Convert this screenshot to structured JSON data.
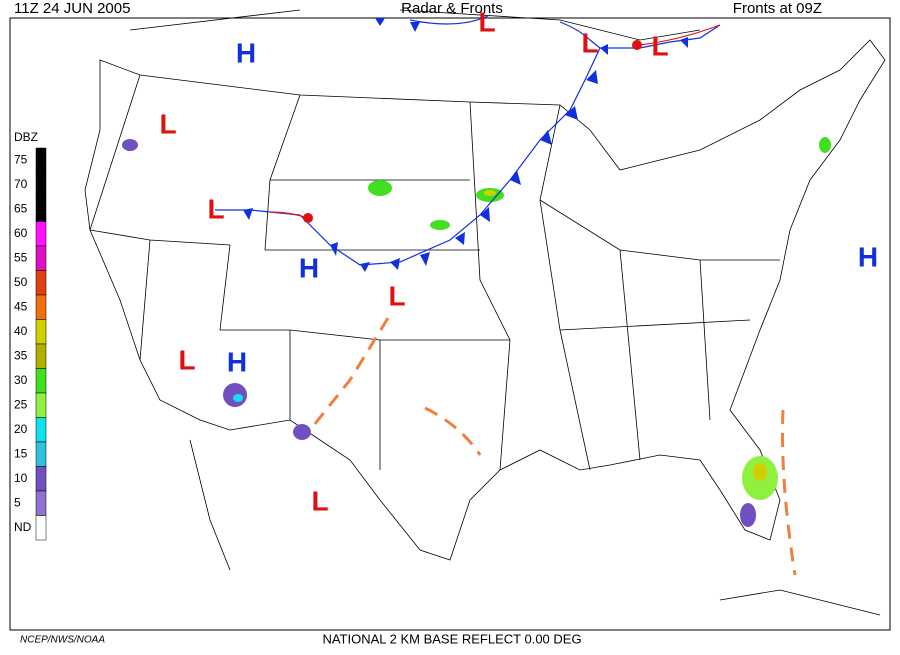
{
  "header": {
    "time": "11Z  24 JUN  2005",
    "title": "Radar & Fronts",
    "fronts_time": "Fronts at 09Z"
  },
  "legend": {
    "title": "DBZ",
    "levels": [
      {
        "label": "75",
        "color": "#000000"
      },
      {
        "label": "70",
        "color": "#000000"
      },
      {
        "label": "65",
        "color": "#000000"
      },
      {
        "label": "60",
        "color": "#ff10ff"
      },
      {
        "label": "55",
        "color": "#e010c0"
      },
      {
        "label": "50",
        "color": "#e04010"
      },
      {
        "label": "45",
        "color": "#f07010"
      },
      {
        "label": "40",
        "color": "#d0d000"
      },
      {
        "label": "35",
        "color": "#b0b000"
      },
      {
        "label": "30",
        "color": "#40e020"
      },
      {
        "label": "25",
        "color": "#90f040"
      },
      {
        "label": "20",
        "color": "#10e0f0"
      },
      {
        "label": "15",
        "color": "#30c0e0"
      },
      {
        "label": "10",
        "color": "#7050c0"
      },
      {
        "label": "5",
        "color": "#9070d0"
      },
      {
        "label": "ND",
        "color": "#ffffff"
      }
    ]
  },
  "pressure_centers": {
    "high_color": "#1030e0",
    "low_color": "#e01010",
    "letters": [
      "H",
      "L",
      "L",
      "L",
      "L",
      "L",
      "H",
      "H",
      "L",
      "L",
      "H",
      "L"
    ]
  },
  "footer": {
    "source": "NCEP/NWS/NOAA",
    "product": "NATIONAL 2 KM BASE REFLECT 0.00 DEG"
  }
}
